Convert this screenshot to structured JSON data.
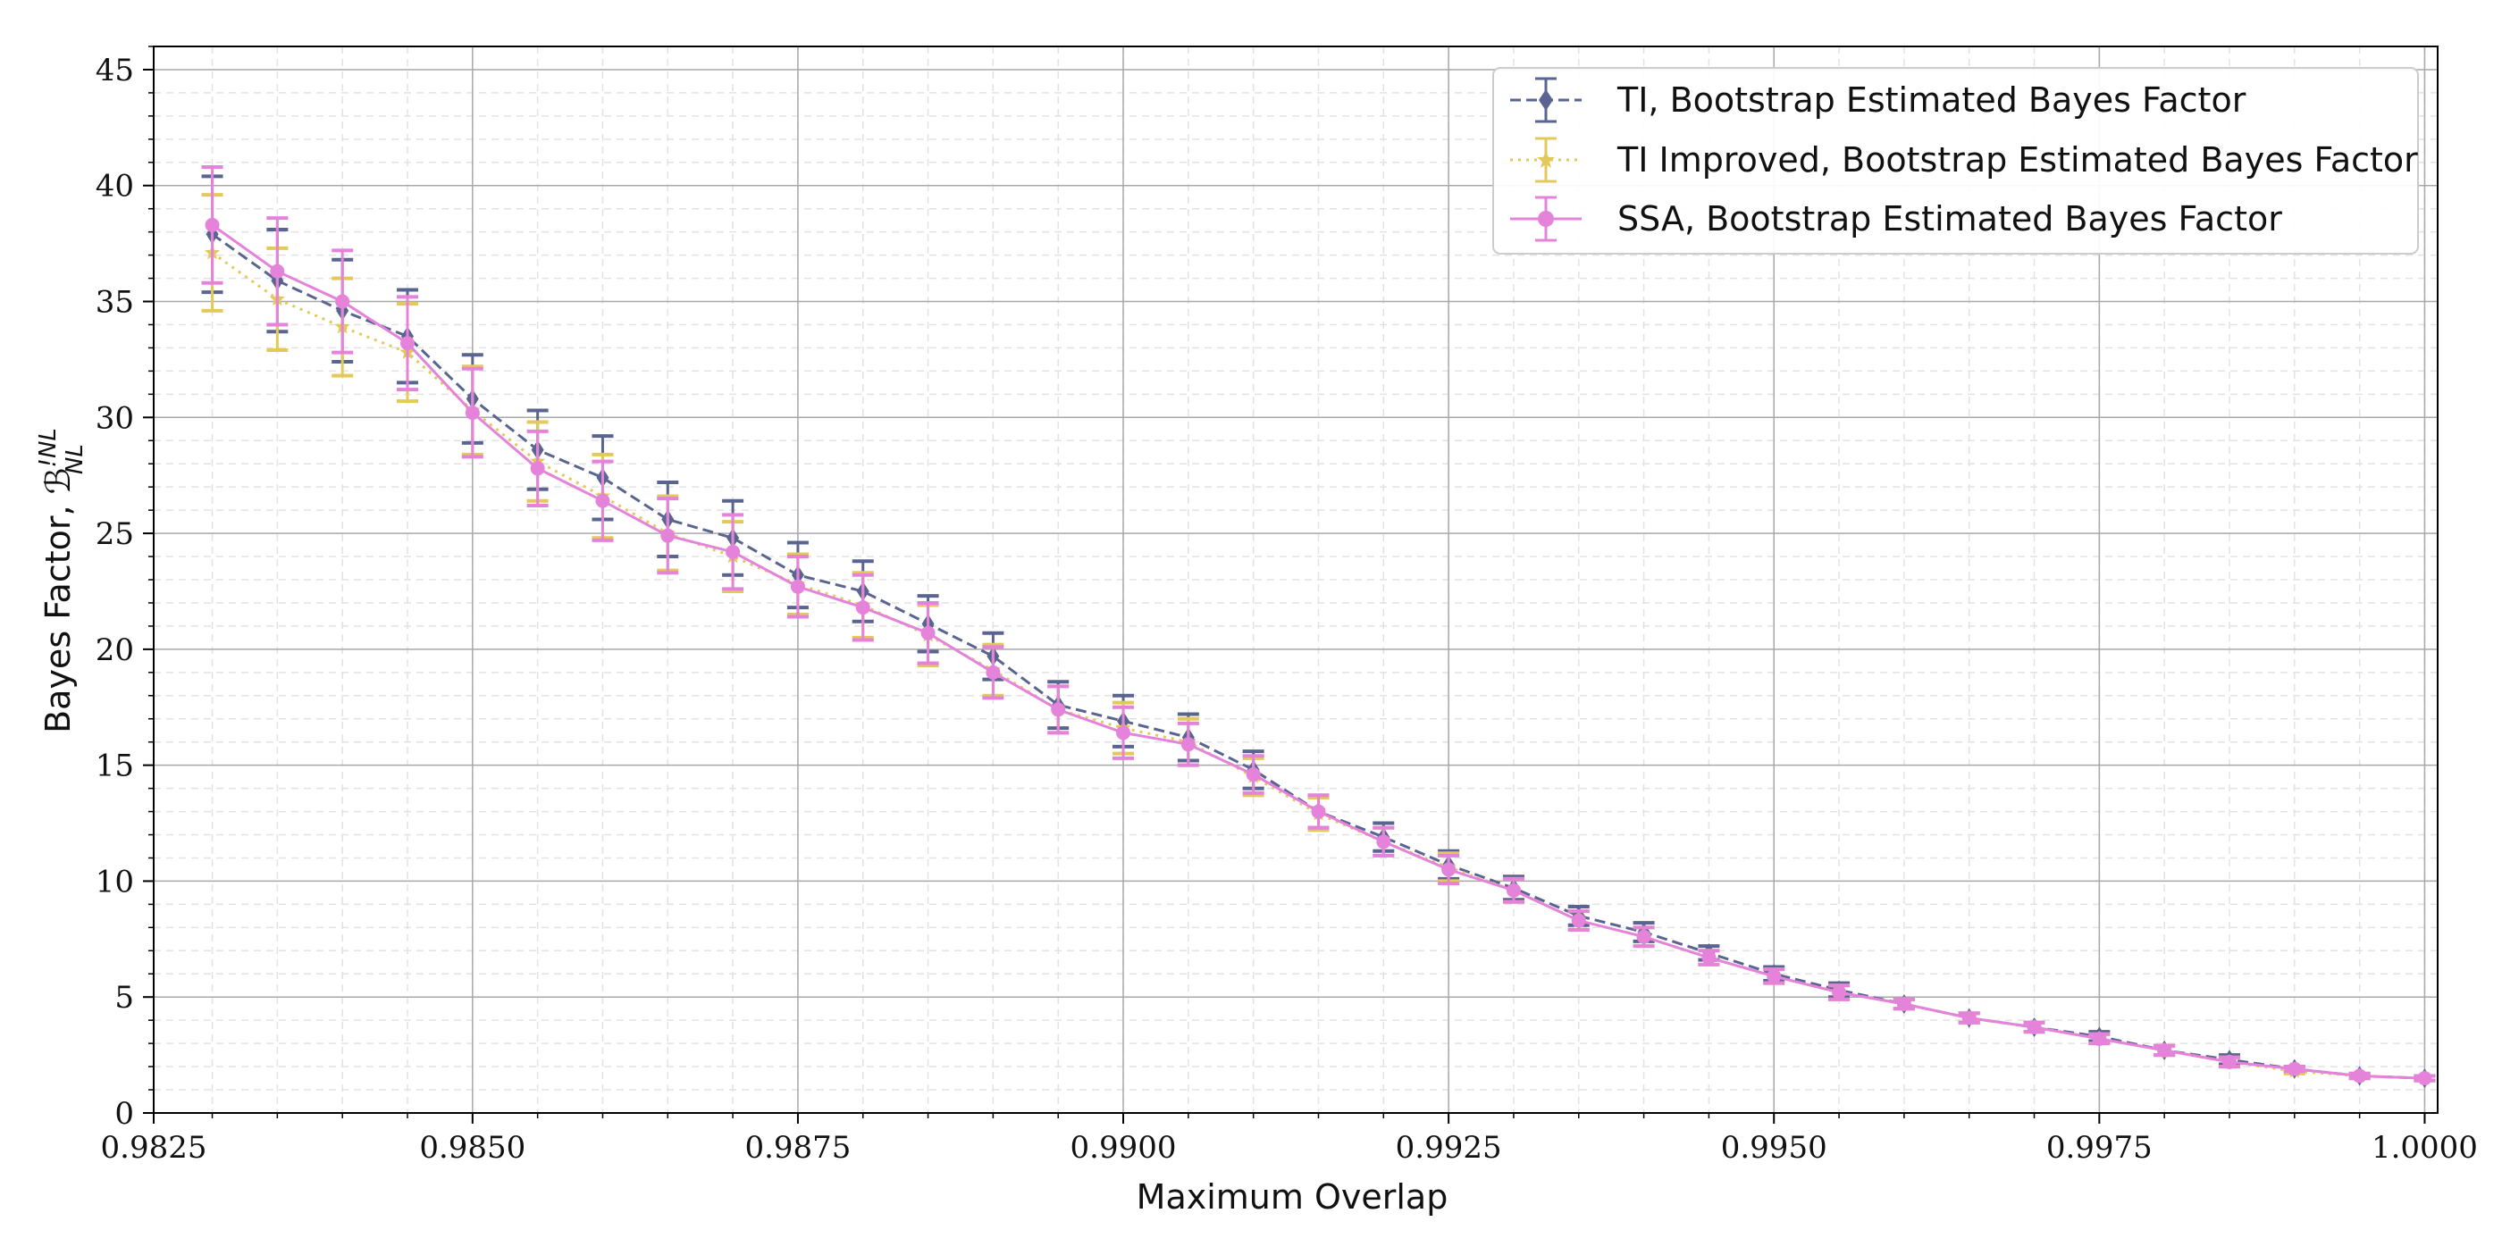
{
  "chart_data": {
    "type": "line",
    "xlabel": "Maximum Overlap",
    "ylabel": "Bayes Factor, ℬ",
    "ylabel_sup": "!NL",
    "ylabel_sub": "NL",
    "xlim": [
      0.98255,
      1.0001
    ],
    "ylim": [
      0,
      46
    ],
    "x_ticks": [
      0.9825,
      0.985,
      0.9875,
      0.99,
      0.9925,
      0.995,
      0.9975,
      1.0
    ],
    "x_tick_labels": [
      "0.9825",
      "0.9850",
      "0.9875",
      "0.9900",
      "0.9925",
      "0.9950",
      "0.9975",
      "1.0000"
    ],
    "y_ticks": [
      0,
      5,
      10,
      15,
      20,
      25,
      30,
      35,
      40,
      45
    ],
    "y_tick_labels": [
      "0",
      "5",
      "10",
      "15",
      "20",
      "25",
      "30",
      "35",
      "40",
      "45"
    ],
    "grid": true,
    "legend_position": "top-right",
    "x": [
      0.983,
      0.9835,
      0.984,
      0.9845,
      0.985,
      0.9855,
      0.986,
      0.9865,
      0.987,
      0.9875,
      0.988,
      0.9885,
      0.989,
      0.9895,
      0.99,
      0.9905,
      0.991,
      0.9915,
      0.992,
      0.9925,
      0.993,
      0.9935,
      0.994,
      0.9945,
      0.995,
      0.9955,
      0.996,
      0.9965,
      0.997,
      0.9975,
      0.998,
      0.9985,
      0.999,
      0.9995,
      1.0
    ],
    "series": [
      {
        "name": "TI, Bootstrap Estimated Bayes Factor",
        "color": "#5a6490",
        "line_style": "dashed",
        "marker": "diamond",
        "values": [
          37.9,
          35.9,
          34.6,
          33.5,
          30.8,
          28.6,
          27.4,
          25.6,
          24.8,
          23.2,
          22.5,
          21.1,
          19.7,
          17.6,
          16.9,
          16.2,
          14.8,
          13.0,
          11.9,
          10.7,
          9.7,
          8.5,
          7.8,
          6.9,
          6.0,
          5.3,
          4.7,
          4.1,
          3.7,
          3.3,
          2.7,
          2.3,
          1.9,
          1.6,
          1.5
        ],
        "errors": [
          2.5,
          2.2,
          2.2,
          2.0,
          1.9,
          1.7,
          1.8,
          1.6,
          1.6,
          1.4,
          1.3,
          1.2,
          1.0,
          1.0,
          1.1,
          1.0,
          0.8,
          0.7,
          0.6,
          0.6,
          0.5,
          0.4,
          0.4,
          0.3,
          0.3,
          0.3,
          0.2,
          0.2,
          0.2,
          0.2,
          0.2,
          0.2,
          0.1,
          0.1,
          0.1
        ]
      },
      {
        "name": "TI Improved, Bootstrap Estimated Bayes Factor",
        "color": "#e3c95a",
        "line_style": "dotted",
        "marker": "star",
        "values": [
          37.1,
          35.1,
          33.9,
          32.8,
          30.3,
          28.1,
          26.6,
          25.0,
          24.0,
          22.8,
          21.9,
          20.6,
          19.1,
          17.4,
          16.6,
          16.0,
          14.5,
          12.9,
          11.7,
          10.6,
          9.6,
          8.3,
          7.6,
          6.7,
          5.9,
          5.2,
          4.7,
          4.1,
          3.7,
          3.2,
          2.7,
          2.2,
          1.8,
          1.6,
          1.5
        ],
        "errors": [
          2.5,
          2.2,
          2.1,
          2.1,
          1.9,
          1.7,
          1.8,
          1.6,
          1.5,
          1.3,
          1.4,
          1.3,
          1.1,
          1.0,
          1.1,
          1.0,
          0.8,
          0.7,
          0.6,
          0.6,
          0.5,
          0.4,
          0.4,
          0.3,
          0.3,
          0.3,
          0.2,
          0.2,
          0.2,
          0.2,
          0.2,
          0.2,
          0.1,
          0.1,
          0.1
        ]
      },
      {
        "name": "SSA, Bootstrap Estimated Bayes Factor",
        "color": "#e583db",
        "line_style": "solid",
        "marker": "circle",
        "values": [
          38.3,
          36.3,
          35.0,
          33.2,
          30.2,
          27.8,
          26.4,
          24.9,
          24.2,
          22.7,
          21.8,
          20.7,
          19.0,
          17.4,
          16.4,
          15.9,
          14.6,
          13.0,
          11.7,
          10.5,
          9.6,
          8.3,
          7.6,
          6.7,
          5.9,
          5.2,
          4.7,
          4.1,
          3.7,
          3.2,
          2.7,
          2.2,
          1.9,
          1.6,
          1.5
        ],
        "errors": [
          2.5,
          2.3,
          2.2,
          2.0,
          1.9,
          1.6,
          1.7,
          1.6,
          1.6,
          1.3,
          1.4,
          1.3,
          1.1,
          1.0,
          1.1,
          0.9,
          0.8,
          0.7,
          0.6,
          0.6,
          0.5,
          0.4,
          0.4,
          0.3,
          0.3,
          0.3,
          0.2,
          0.2,
          0.2,
          0.2,
          0.2,
          0.2,
          0.1,
          0.1,
          0.1
        ]
      }
    ]
  }
}
